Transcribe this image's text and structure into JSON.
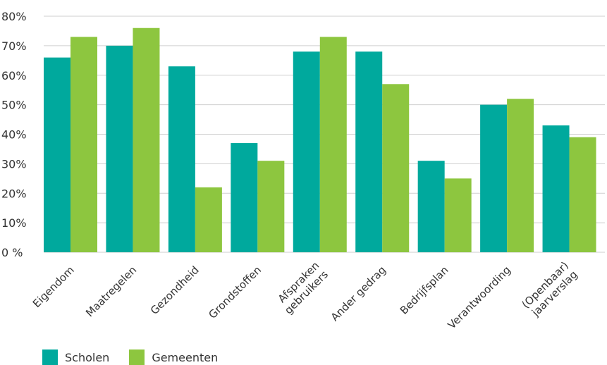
{
  "chart_data": {
    "type": "bar",
    "categories": [
      [
        "Eigendom"
      ],
      [
        "Maatregelen"
      ],
      [
        "Gezondheid"
      ],
      [
        "Grondstoffen"
      ],
      [
        "Afspraken",
        "gebruikers"
      ],
      [
        "Ander gedrag"
      ],
      [
        "Bedrijfsplan"
      ],
      [
        "Verantwoording"
      ],
      [
        "(Openbaar)",
        "jaarverslag"
      ]
    ],
    "series": [
      {
        "name": "Scholen",
        "color": "#00A99D",
        "values": [
          66,
          70,
          63,
          37,
          68,
          68,
          31,
          50,
          43
        ]
      },
      {
        "name": "Gemeenten",
        "color": "#8DC63F",
        "values": [
          73,
          76,
          22,
          31,
          73,
          57,
          25,
          52,
          39
        ]
      }
    ],
    "yticks": [
      "0 %",
      "10%",
      "20%",
      "30%",
      "40%",
      "50%",
      "60%",
      "70%",
      "80%"
    ],
    "ylim": [
      0,
      80
    ],
    "grid": true,
    "legend_position": "bottom-left"
  },
  "legend": {
    "scholen": "Scholen",
    "gemeenten": "Gemeenten",
    "scholen_color": "#00A99D",
    "gemeenten_color": "#8DC63F"
  }
}
